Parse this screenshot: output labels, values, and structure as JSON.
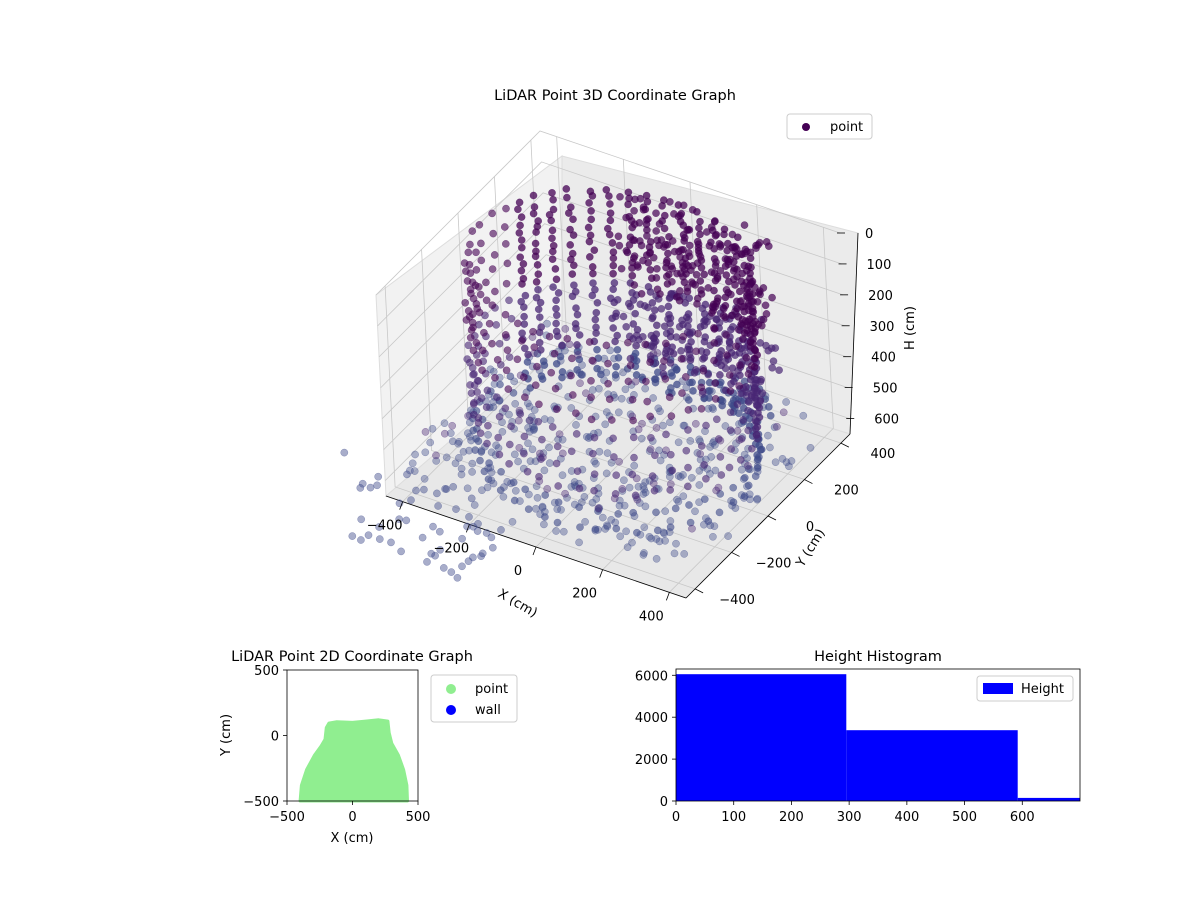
{
  "chart_data": [
    {
      "type": "scatter",
      "dimensions": 3,
      "title": "LiDAR Point 3D Coordinate Graph",
      "xlabel": "X (cm)",
      "ylabel": "Y (cm)",
      "zlabel": "H (cm)",
      "z_inverted": true,
      "x_ticks": [
        "−400",
        "−200",
        "0",
        "200",
        "400"
      ],
      "y_ticks": [
        "−400",
        "−200",
        "0",
        "200",
        "400"
      ],
      "z_ticks": [
        "0",
        "100",
        "200",
        "300",
        "400",
        "500",
        "600"
      ],
      "xlim": [
        -450,
        450
      ],
      "ylim": [
        -450,
        450
      ],
      "zlim": [
        0,
        650
      ],
      "grid": true,
      "legend": {
        "placement": "upper-right",
        "entries": [
          {
            "label": "point",
            "color": "#440154"
          }
        ]
      },
      "colormap": "viridis (depth-shaded, dark purple)",
      "series": [
        {
          "name": "point",
          "color": "#440154"
        }
      ],
      "shape": "Room-shaped point cloud: outer walls rising from the floor along a rounded perimeter, densest toward +Y; scattered floor points extend toward −X / −Y."
    },
    {
      "type": "scatter",
      "title": "LiDAR Point 2D Coordinate Graph",
      "xlabel": "X (cm)",
      "ylabel": "Y (cm)",
      "x_ticks": [
        "−500",
        "0",
        "500"
      ],
      "y_ticks": [
        "−500",
        "0",
        "500"
      ],
      "xlim": [
        -500,
        500
      ],
      "ylim": [
        -500,
        500
      ],
      "legend": {
        "placement": "outside-right",
        "entries": [
          {
            "label": "point",
            "color": "#90ee90"
          },
          {
            "label": "wall",
            "color": "#0000ff"
          }
        ]
      },
      "series": [
        {
          "name": "point",
          "color": "#90ee90",
          "outline": [
            [
              -400,
              -500
            ],
            [
              -390,
              -380
            ],
            [
              -350,
              -260
            ],
            [
              -290,
              -150
            ],
            [
              -240,
              -80
            ],
            [
              -210,
              -30
            ],
            [
              -200,
              60
            ],
            [
              -180,
              95
            ],
            [
              -120,
              105
            ],
            [
              0,
              100
            ],
            [
              100,
              110
            ],
            [
              200,
              120
            ],
            [
              270,
              110
            ],
            [
              280,
              20
            ],
            [
              300,
              -60
            ],
            [
              350,
              -150
            ],
            [
              390,
              -260
            ],
            [
              415,
              -380
            ],
            [
              420,
              -500
            ]
          ]
        },
        {
          "name": "wall",
          "color": "#0000ff",
          "points": []
        }
      ]
    },
    {
      "type": "bar",
      "subtype": "histogram",
      "title": "Height Histogram",
      "xlabel": "",
      "ylabel": "",
      "x_ticks": [
        "0",
        "100",
        "200",
        "300",
        "400",
        "500",
        "600"
      ],
      "y_ticks": [
        "0",
        "2000",
        "4000",
        "6000"
      ],
      "xlim": [
        0,
        700
      ],
      "ylim": [
        0,
        6300
      ],
      "legend": {
        "placement": "upper-right",
        "entries": [
          {
            "label": "Height",
            "color": "#0000ff"
          }
        ]
      },
      "series": [
        {
          "name": "Height",
          "color": "#0000ff",
          "bins": [
            {
              "x0": 0,
              "x1": 295,
              "count": 6050
            },
            {
              "x0": 295,
              "x1": 592,
              "count": 3380
            },
            {
              "x0": 592,
              "x1": 700,
              "count": 150
            }
          ]
        }
      ]
    }
  ]
}
